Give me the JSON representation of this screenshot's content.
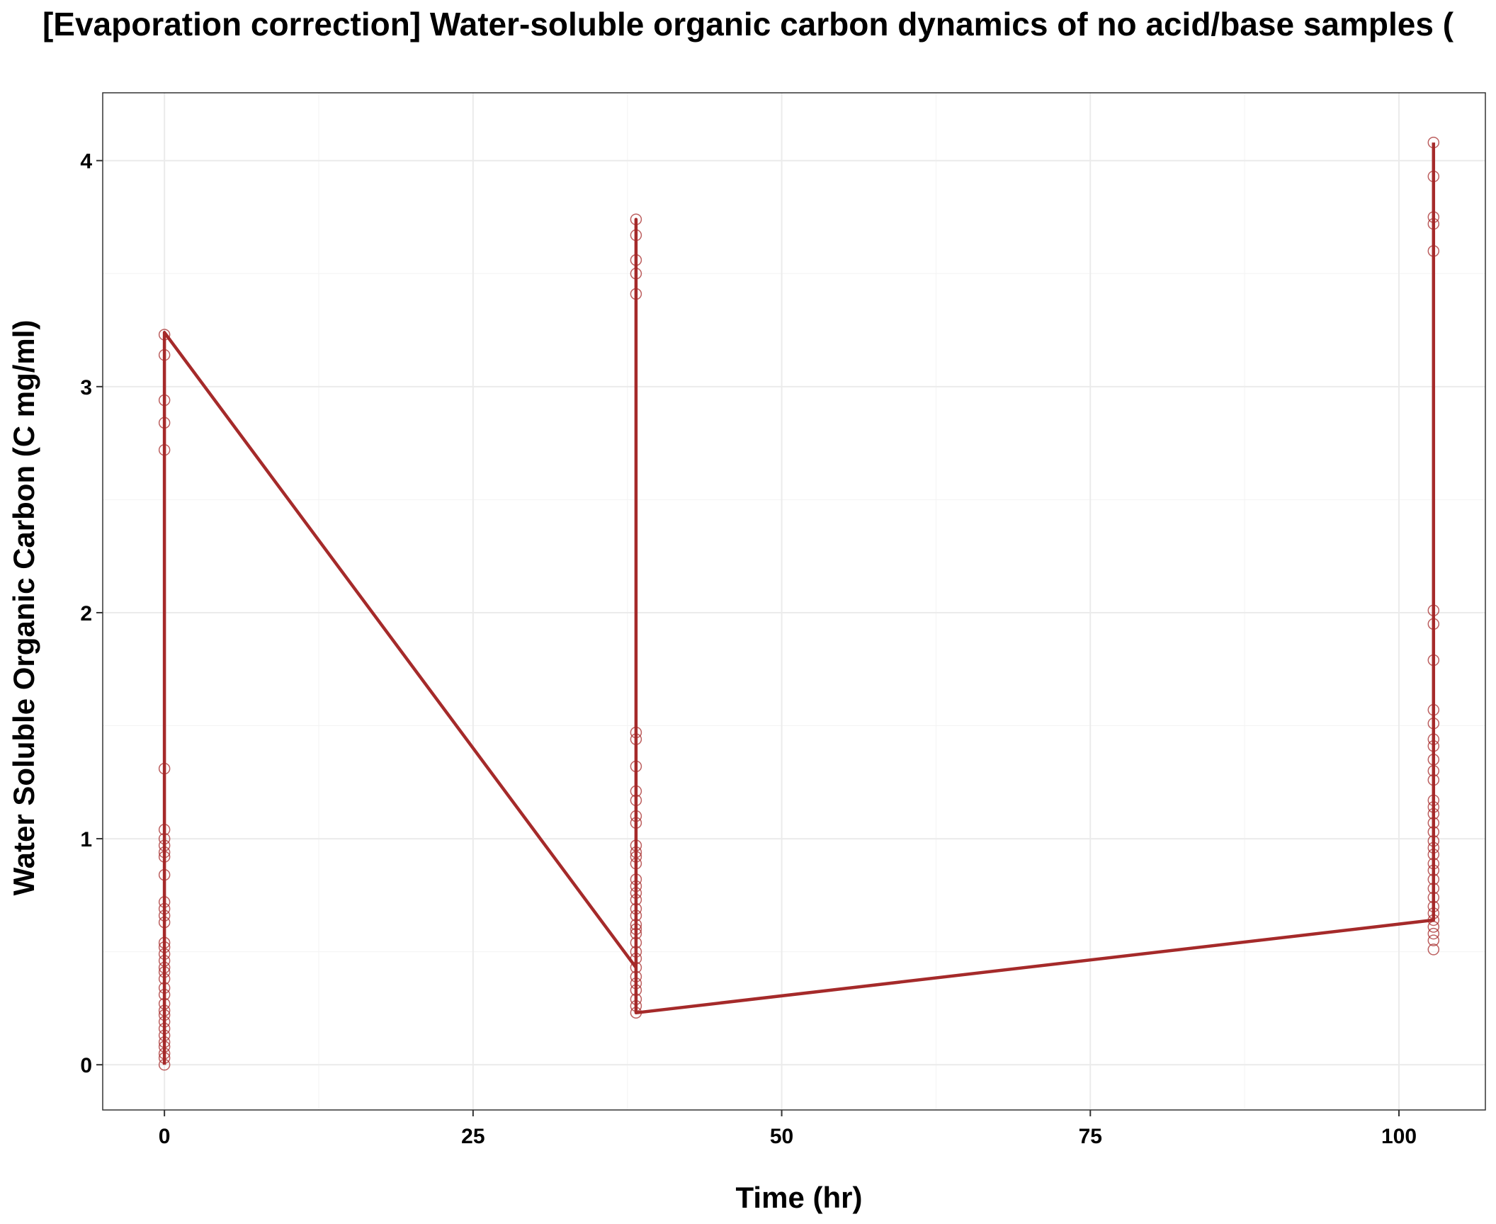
{
  "chart_data": {
    "type": "line",
    "title": "[Evaporation correction] Water-soluble organic carbon dynamics of no acid/base samples (",
    "xlabel": "Time (hr)",
    "ylabel": "Water Soluble Organic Carbon (C mg/ml)",
    "xlim": [
      -5,
      107
    ],
    "ylim": [
      -0.2,
      4.3
    ],
    "x_ticks": [
      0,
      25,
      50,
      75,
      100
    ],
    "x_tick_labels": [
      "0",
      "25",
      "50",
      "75",
      "100"
    ],
    "y_ticks": [
      0,
      1,
      2,
      3,
      4
    ],
    "y_tick_labels": [
      "0",
      "1",
      "2",
      "3",
      "4"
    ],
    "grid": true,
    "legend": "none",
    "series": [
      {
        "color": "#a52a2a",
        "marker": "open-circle",
        "line_path": [
          {
            "x": 0,
            "y": 0.0
          },
          {
            "x": 0,
            "y": 3.24
          },
          {
            "x": 38.2,
            "y": 0.43
          },
          {
            "x": 38.2,
            "y": 3.74
          },
          {
            "x": 38.2,
            "y": 0.23
          },
          {
            "x": 102.8,
            "y": 0.64
          },
          {
            "x": 102.8,
            "y": 4.08
          }
        ],
        "points": [
          {
            "x": 0,
            "y": 3.23
          },
          {
            "x": 0,
            "y": 3.14
          },
          {
            "x": 0,
            "y": 2.94
          },
          {
            "x": 0,
            "y": 2.84
          },
          {
            "x": 0,
            "y": 2.72
          },
          {
            "x": 0,
            "y": 1.31
          },
          {
            "x": 0,
            "y": 1.04
          },
          {
            "x": 0,
            "y": 1.0
          },
          {
            "x": 0,
            "y": 0.97
          },
          {
            "x": 0,
            "y": 0.94
          },
          {
            "x": 0,
            "y": 0.92
          },
          {
            "x": 0,
            "y": 0.84
          },
          {
            "x": 0,
            "y": 0.72
          },
          {
            "x": 0,
            "y": 0.69
          },
          {
            "x": 0,
            "y": 0.66
          },
          {
            "x": 0,
            "y": 0.63
          },
          {
            "x": 0,
            "y": 0.54
          },
          {
            "x": 0,
            "y": 0.52
          },
          {
            "x": 0,
            "y": 0.49
          },
          {
            "x": 0,
            "y": 0.46
          },
          {
            "x": 0,
            "y": 0.43
          },
          {
            "x": 0,
            "y": 0.41
          },
          {
            "x": 0,
            "y": 0.38
          },
          {
            "x": 0,
            "y": 0.34
          },
          {
            "x": 0,
            "y": 0.31
          },
          {
            "x": 0,
            "y": 0.27
          },
          {
            "x": 0,
            "y": 0.24
          },
          {
            "x": 0,
            "y": 0.22
          },
          {
            "x": 0,
            "y": 0.19
          },
          {
            "x": 0,
            "y": 0.16
          },
          {
            "x": 0,
            "y": 0.13
          },
          {
            "x": 0,
            "y": 0.1
          },
          {
            "x": 0,
            "y": 0.08
          },
          {
            "x": 0,
            "y": 0.05
          },
          {
            "x": 0,
            "y": 0.03
          },
          {
            "x": 0,
            "y": 0.0
          },
          {
            "x": 38.2,
            "y": 3.74
          },
          {
            "x": 38.2,
            "y": 3.67
          },
          {
            "x": 38.2,
            "y": 3.56
          },
          {
            "x": 38.2,
            "y": 3.5
          },
          {
            "x": 38.2,
            "y": 3.41
          },
          {
            "x": 38.2,
            "y": 1.47
          },
          {
            "x": 38.2,
            "y": 1.44
          },
          {
            "x": 38.2,
            "y": 1.32
          },
          {
            "x": 38.2,
            "y": 1.21
          },
          {
            "x": 38.2,
            "y": 1.17
          },
          {
            "x": 38.2,
            "y": 1.1
          },
          {
            "x": 38.2,
            "y": 1.07
          },
          {
            "x": 38.2,
            "y": 0.97
          },
          {
            "x": 38.2,
            "y": 0.94
          },
          {
            "x": 38.2,
            "y": 0.92
          },
          {
            "x": 38.2,
            "y": 0.89
          },
          {
            "x": 38.2,
            "y": 0.82
          },
          {
            "x": 38.2,
            "y": 0.79
          },
          {
            "x": 38.2,
            "y": 0.76
          },
          {
            "x": 38.2,
            "y": 0.73
          },
          {
            "x": 38.2,
            "y": 0.69
          },
          {
            "x": 38.2,
            "y": 0.66
          },
          {
            "x": 38.2,
            "y": 0.62
          },
          {
            "x": 38.2,
            "y": 0.6
          },
          {
            "x": 38.2,
            "y": 0.58
          },
          {
            "x": 38.2,
            "y": 0.54
          },
          {
            "x": 38.2,
            "y": 0.5
          },
          {
            "x": 38.2,
            "y": 0.47
          },
          {
            "x": 38.2,
            "y": 0.43
          },
          {
            "x": 38.2,
            "y": 0.39
          },
          {
            "x": 38.2,
            "y": 0.36
          },
          {
            "x": 38.2,
            "y": 0.33
          },
          {
            "x": 38.2,
            "y": 0.29
          },
          {
            "x": 38.2,
            "y": 0.26
          },
          {
            "x": 38.2,
            "y": 0.23
          },
          {
            "x": 102.8,
            "y": 4.08
          },
          {
            "x": 102.8,
            "y": 3.93
          },
          {
            "x": 102.8,
            "y": 3.75
          },
          {
            "x": 102.8,
            "y": 3.72
          },
          {
            "x": 102.8,
            "y": 3.6
          },
          {
            "x": 102.8,
            "y": 2.01
          },
          {
            "x": 102.8,
            "y": 1.95
          },
          {
            "x": 102.8,
            "y": 1.79
          },
          {
            "x": 102.8,
            "y": 1.57
          },
          {
            "x": 102.8,
            "y": 1.51
          },
          {
            "x": 102.8,
            "y": 1.44
          },
          {
            "x": 102.8,
            "y": 1.41
          },
          {
            "x": 102.8,
            "y": 1.35
          },
          {
            "x": 102.8,
            "y": 1.3
          },
          {
            "x": 102.8,
            "y": 1.26
          },
          {
            "x": 102.8,
            "y": 1.17
          },
          {
            "x": 102.8,
            "y": 1.14
          },
          {
            "x": 102.8,
            "y": 1.11
          },
          {
            "x": 102.8,
            "y": 1.07
          },
          {
            "x": 102.8,
            "y": 1.03
          },
          {
            "x": 102.8,
            "y": 0.99
          },
          {
            "x": 102.8,
            "y": 0.96
          },
          {
            "x": 102.8,
            "y": 0.93
          },
          {
            "x": 102.8,
            "y": 0.89
          },
          {
            "x": 102.8,
            "y": 0.86
          },
          {
            "x": 102.8,
            "y": 0.82
          },
          {
            "x": 102.8,
            "y": 0.78
          },
          {
            "x": 102.8,
            "y": 0.74
          },
          {
            "x": 102.8,
            "y": 0.7
          },
          {
            "x": 102.8,
            "y": 0.67
          },
          {
            "x": 102.8,
            "y": 0.64
          },
          {
            "x": 102.8,
            "y": 0.61
          },
          {
            "x": 102.8,
            "y": 0.58
          },
          {
            "x": 102.8,
            "y": 0.55
          },
          {
            "x": 102.8,
            "y": 0.51
          }
        ]
      }
    ]
  }
}
